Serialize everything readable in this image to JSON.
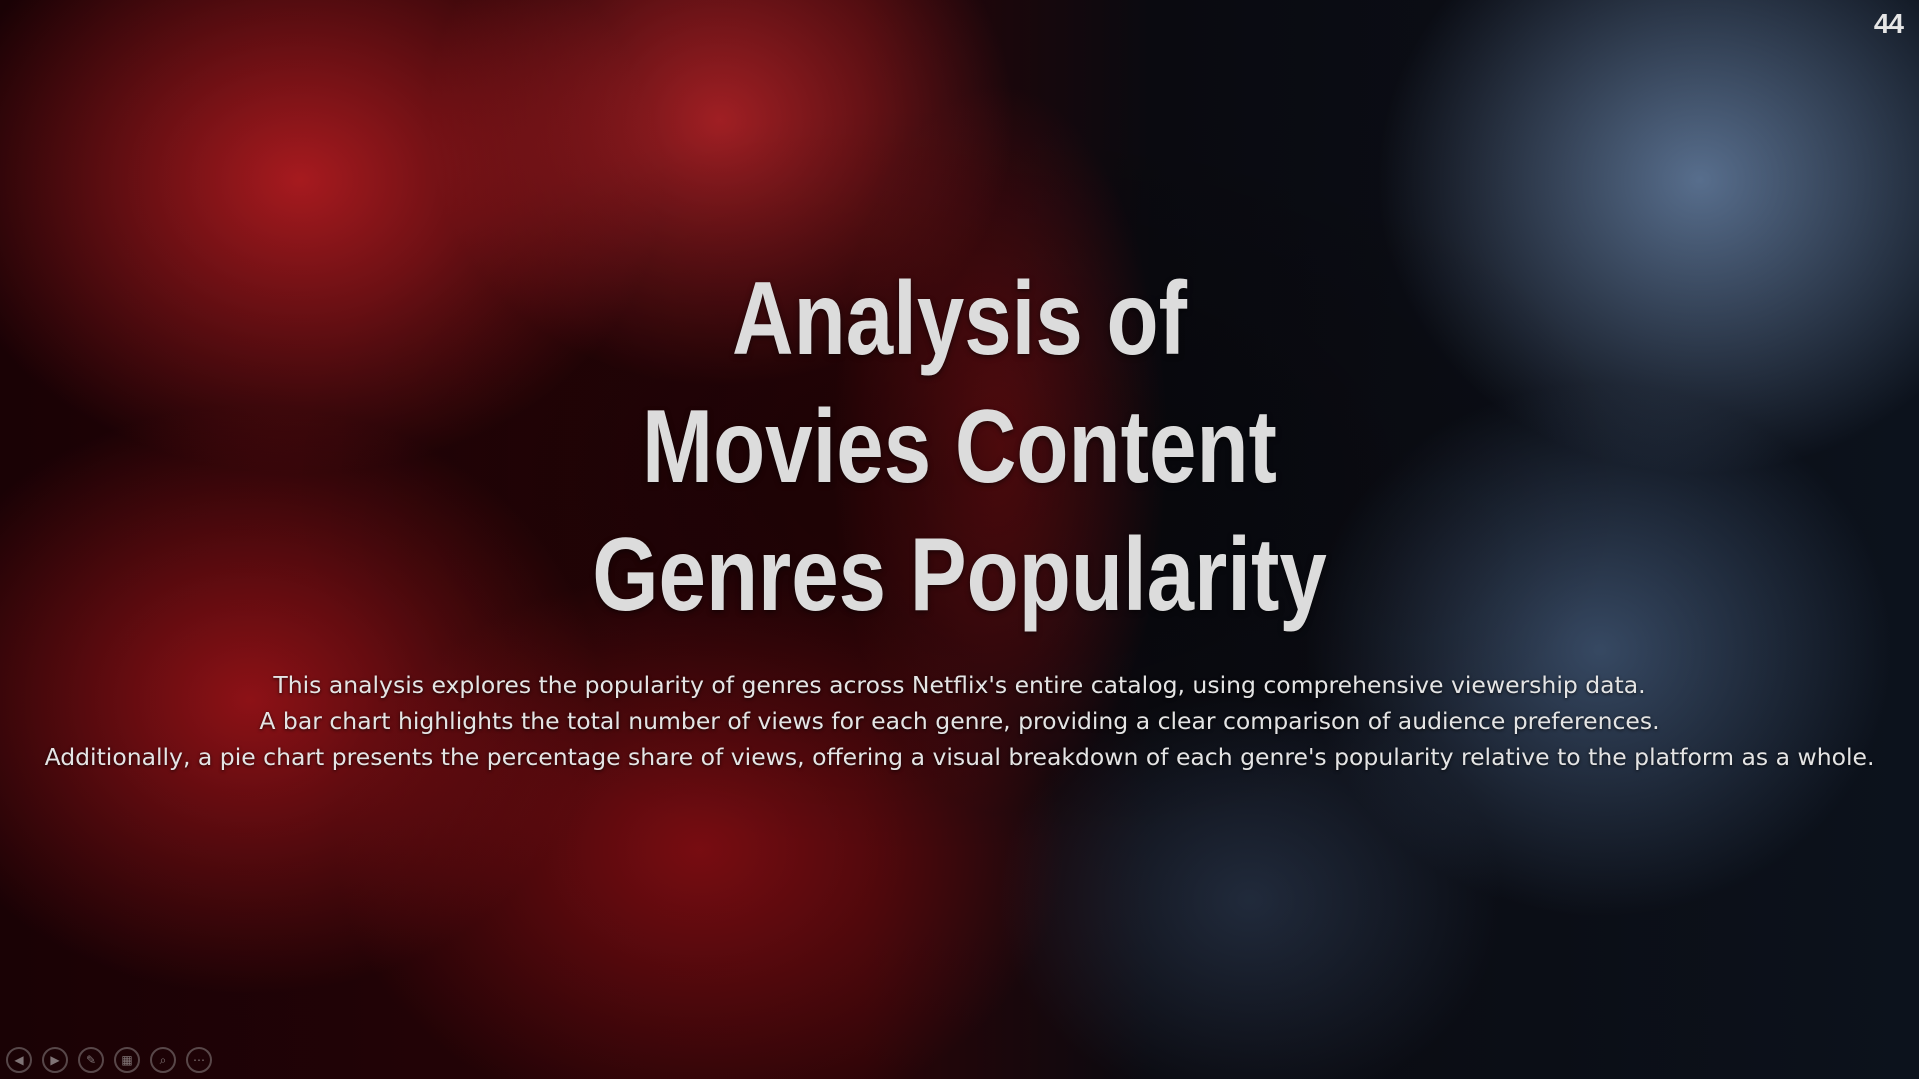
{
  "slide": {
    "number": "44",
    "title_lines": [
      "Analysis of",
      "Movies Content",
      "Genres Popularity"
    ],
    "description_lines": [
      "This analysis explores the popularity of genres across Netflix's entire catalog, using comprehensive viewership data.",
      "A bar chart highlights the total number of views for each genre, providing a clear comparison of audience preferences.",
      "Additionally, a pie chart presents the percentage share of views, offering a visual breakdown of each genre's popularity relative to the platform as a whole."
    ]
  },
  "controls": [
    {
      "icon": "previous-icon",
      "glyph": "◀"
    },
    {
      "icon": "next-icon",
      "glyph": "▶"
    },
    {
      "icon": "pen-icon",
      "glyph": "✎"
    },
    {
      "icon": "slides-grid-icon",
      "glyph": "▦"
    },
    {
      "icon": "zoom-icon",
      "glyph": "⌕"
    },
    {
      "icon": "more-icon",
      "glyph": "⋯"
    }
  ]
}
